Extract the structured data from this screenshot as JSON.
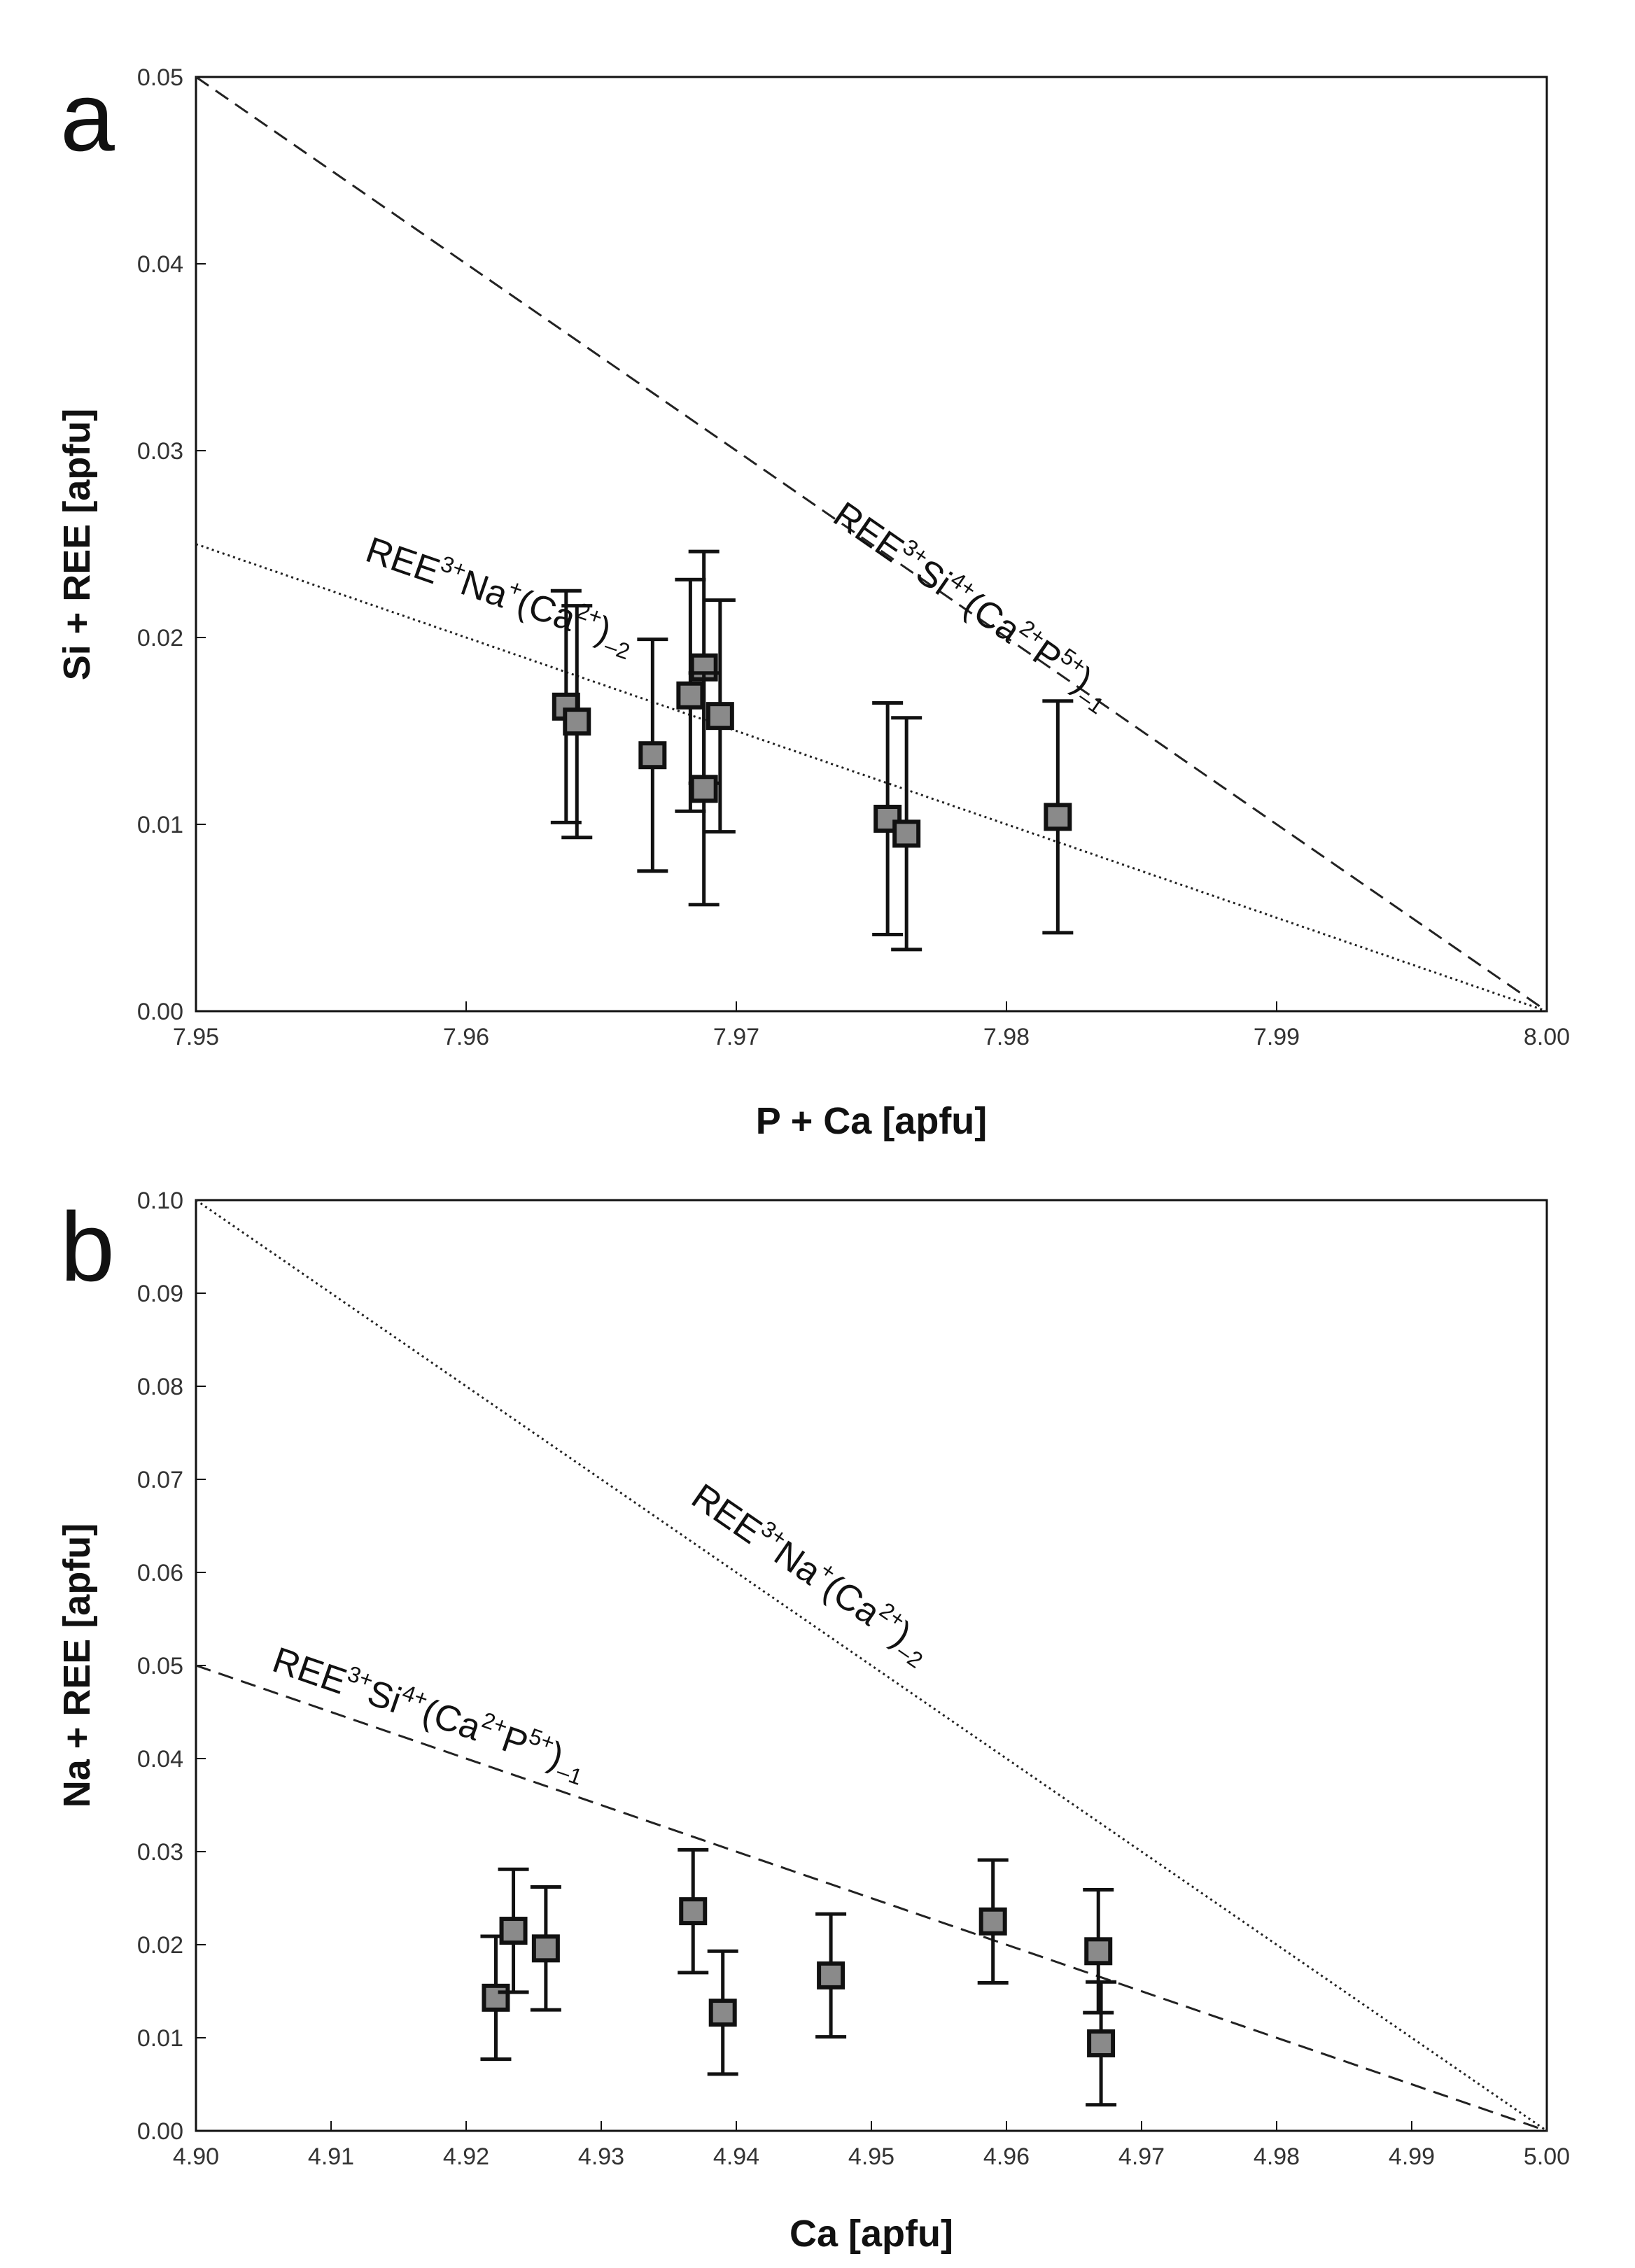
{
  "chart_data": [
    {
      "panel": "a",
      "type": "scatter",
      "xlabel": "P + Ca [apfu]",
      "ylabel": "Si + REE [apfu]",
      "xlim": [
        7.95,
        8.0
      ],
      "ylim": [
        0.0,
        0.05
      ],
      "x_ticks": [
        "7.95",
        "7.96",
        "7.97",
        "7.98",
        "7.99",
        "8.00"
      ],
      "y_ticks": [
        "0.00",
        "0.01",
        "0.02",
        "0.03",
        "0.04",
        "0.05"
      ],
      "reference_lines": [
        {
          "name": "REE-Si substitution",
          "style": "dashed",
          "x": [
            7.95,
            8.0
          ],
          "y": [
            0.05,
            0.0
          ],
          "label": [
            {
              "t": "REE",
              "s": "n"
            },
            {
              "t": "3+",
              "s": "sup"
            },
            {
              "t": "Si",
              "s": "n"
            },
            {
              "t": "4+",
              "s": "sup"
            },
            {
              "t": "(Ca",
              "s": "n"
            },
            {
              "t": "2+",
              "s": "sup"
            },
            {
              "t": "P",
              "s": "n"
            },
            {
              "t": "5+",
              "s": "sup"
            },
            {
              "t": ")",
              "s": "n"
            },
            {
              "t": "–1",
              "s": "sub"
            }
          ],
          "label_at": [
            7.9735,
            0.02625
          ]
        },
        {
          "name": "REE-Na substitution",
          "style": "dotted",
          "x": [
            7.95,
            8.0
          ],
          "y": [
            0.025,
            0.0
          ],
          "label": [
            {
              "t": "REE",
              "s": "n"
            },
            {
              "t": "3+",
              "s": "sup"
            },
            {
              "t": "Na",
              "s": "n"
            },
            {
              "t": "+",
              "s": "sup"
            },
            {
              "t": "(Ca",
              "s": "n"
            },
            {
              "t": "2+",
              "s": "sup"
            },
            {
              "t": ")",
              "s": "n"
            },
            {
              "t": "–2",
              "s": "sub"
            }
          ],
          "label_at": [
            7.9562,
            0.02415
          ]
        }
      ],
      "points": [
        {
          "x": 7.9637,
          "y": 0.0163,
          "err": 0.0062
        },
        {
          "x": 7.9641,
          "y": 0.0155,
          "err": 0.0062
        },
        {
          "x": 7.9669,
          "y": 0.0137,
          "err": 0.0062
        },
        {
          "x": 7.9683,
          "y": 0.0169,
          "err": 0.0062
        },
        {
          "x": 7.9688,
          "y": 0.0184,
          "err": 0.0062
        },
        {
          "x": 7.9688,
          "y": 0.0119,
          "err": 0.0062
        },
        {
          "x": 7.9694,
          "y": 0.0158,
          "err": 0.0062
        },
        {
          "x": 7.9756,
          "y": 0.0103,
          "err": 0.0062
        },
        {
          "x": 7.9763,
          "y": 0.0095,
          "err": 0.0062
        },
        {
          "x": 7.9819,
          "y": 0.0104,
          "err": 0.0062
        }
      ]
    },
    {
      "panel": "b",
      "type": "scatter",
      "xlabel": "Ca [apfu]",
      "ylabel": "Na + REE [apfu]",
      "xlim": [
        4.9,
        5.0
      ],
      "ylim": [
        0.0,
        0.1
      ],
      "x_ticks": [
        "4.90",
        "4.91",
        "4.92",
        "4.93",
        "4.94",
        "4.95",
        "4.96",
        "4.97",
        "4.98",
        "4.99",
        "5.00"
      ],
      "y_ticks": [
        "0.00",
        "0.01",
        "0.02",
        "0.03",
        "0.04",
        "0.05",
        "0.06",
        "0.07",
        "0.08",
        "0.09",
        "0.10"
      ],
      "reference_lines": [
        {
          "name": "REE-Na substitution",
          "style": "dotted",
          "x": [
            4.9,
            5.0
          ],
          "y": [
            0.1,
            0.0
          ],
          "label": [
            {
              "t": "REE",
              "s": "n"
            },
            {
              "t": "3+",
              "s": "sup"
            },
            {
              "t": "Na",
              "s": "n"
            },
            {
              "t": "+",
              "s": "sup"
            },
            {
              "t": "(Ca",
              "s": "n"
            },
            {
              "t": "2+",
              "s": "sup"
            },
            {
              "t": ")",
              "s": "n"
            },
            {
              "t": "–2",
              "s": "sub"
            }
          ],
          "label_at": [
            4.9365,
            0.0675
          ]
        },
        {
          "name": "REE-Si substitution",
          "style": "dashed",
          "x": [
            4.9,
            5.0
          ],
          "y": [
            0.05,
            0.0
          ],
          "label": [
            {
              "t": "REE",
              "s": "n"
            },
            {
              "t": "3+",
              "s": "sup"
            },
            {
              "t": "Si",
              "s": "n"
            },
            {
              "t": "4+",
              "s": "sup"
            },
            {
              "t": "(Ca",
              "s": "n"
            },
            {
              "t": "2+",
              "s": "sup"
            },
            {
              "t": "P",
              "s": "n"
            },
            {
              "t": "5+",
              "s": "sup"
            },
            {
              "t": ")",
              "s": "n"
            },
            {
              "t": "–1",
              "s": "sub"
            }
          ],
          "label_at": [
            4.9055,
            0.0495
          ]
        }
      ],
      "points": [
        {
          "x": 4.9222,
          "y": 0.0143,
          "err": 0.0066
        },
        {
          "x": 4.9235,
          "y": 0.0215,
          "err": 0.0066
        },
        {
          "x": 4.9259,
          "y": 0.0196,
          "err": 0.0066
        },
        {
          "x": 4.9368,
          "y": 0.0236,
          "err": 0.0066
        },
        {
          "x": 4.939,
          "y": 0.0127,
          "err": 0.0066
        },
        {
          "x": 4.947,
          "y": 0.0167,
          "err": 0.0066
        },
        {
          "x": 4.959,
          "y": 0.0225,
          "err": 0.0066
        },
        {
          "x": 4.9668,
          "y": 0.0193,
          "err": 0.0066
        },
        {
          "x": 4.967,
          "y": 0.0094,
          "err": 0.0066
        }
      ]
    }
  ]
}
